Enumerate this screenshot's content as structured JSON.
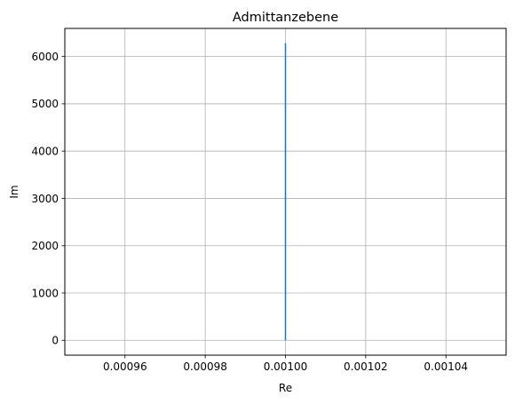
{
  "chart_data": {
    "type": "line",
    "title": "Admittanzebene",
    "xlabel": "Re",
    "ylabel": "Im",
    "xlim": [
      0.000945,
      0.001055
    ],
    "ylim": [
      -314,
      6594
    ],
    "x_ticks": [
      0.00096,
      0.00098,
      0.001,
      0.00102,
      0.00104
    ],
    "x_tick_labels": [
      "0.00096",
      "0.00098",
      "0.00100",
      "0.00102",
      "0.00104"
    ],
    "y_ticks": [
      0,
      1000,
      2000,
      3000,
      4000,
      5000,
      6000
    ],
    "y_tick_labels": [
      "0",
      "1000",
      "2000",
      "3000",
      "4000",
      "5000",
      "6000"
    ],
    "grid": true,
    "series": [
      {
        "color": "#1f77b4",
        "x": [
          0.001,
          0.001
        ],
        "y": [
          0,
          6283
        ]
      }
    ]
  }
}
